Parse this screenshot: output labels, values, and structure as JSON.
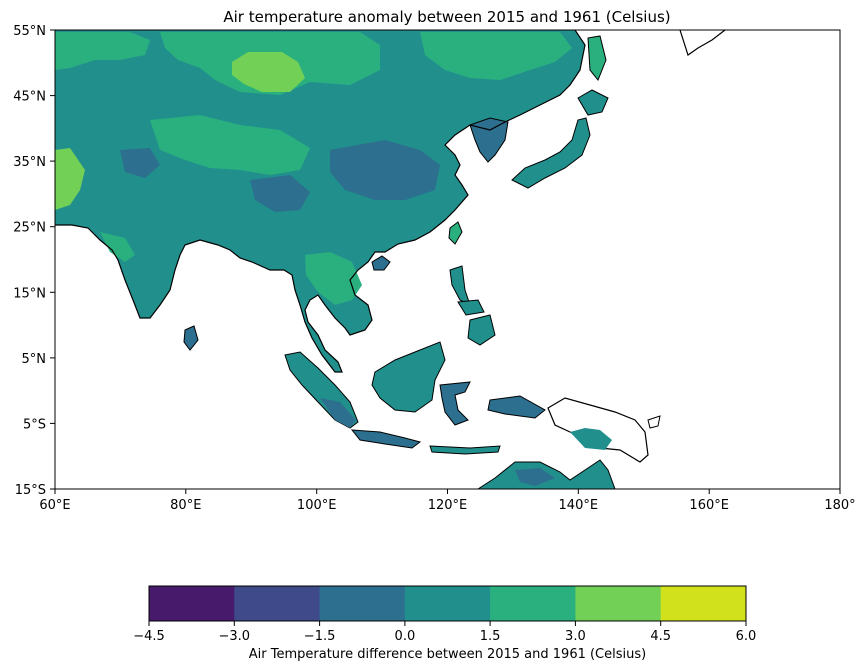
{
  "title": "Air temperature anomaly between 2015 and 1961 (Celsius)",
  "lat_ticks": [
    "55°N",
    "45°N",
    "35°N",
    "25°N",
    "15°N",
    "5°N",
    "5°S",
    "15°S"
  ],
  "lon_ticks": [
    "60°E",
    "80°E",
    "100°E",
    "120°E",
    "140°E",
    "160°E",
    "180°"
  ],
  "extent": {
    "lon": [
      60,
      180
    ],
    "lat": [
      -15,
      55
    ]
  },
  "colorbar": {
    "label": "Air Temperature difference between 2015 and 1961 (Celsius)",
    "levels": [
      "−4.5",
      "−3.0",
      "−1.5",
      "0.0",
      "1.5",
      "3.0",
      "4.5",
      "6.0"
    ],
    "colors": [
      "#481a6c",
      "#3e4a89",
      "#2d6f8e",
      "#21908d",
      "#2ab07f",
      "#72d056",
      "#d1e11c"
    ]
  },
  "map_colors": {
    "land_main": "#21908d",
    "land_warm": "#2ab07f",
    "land_hot": "#72d056",
    "land_cool": "#2d6f8e",
    "coastline": "#000000",
    "ocean": "#ffffff"
  }
}
